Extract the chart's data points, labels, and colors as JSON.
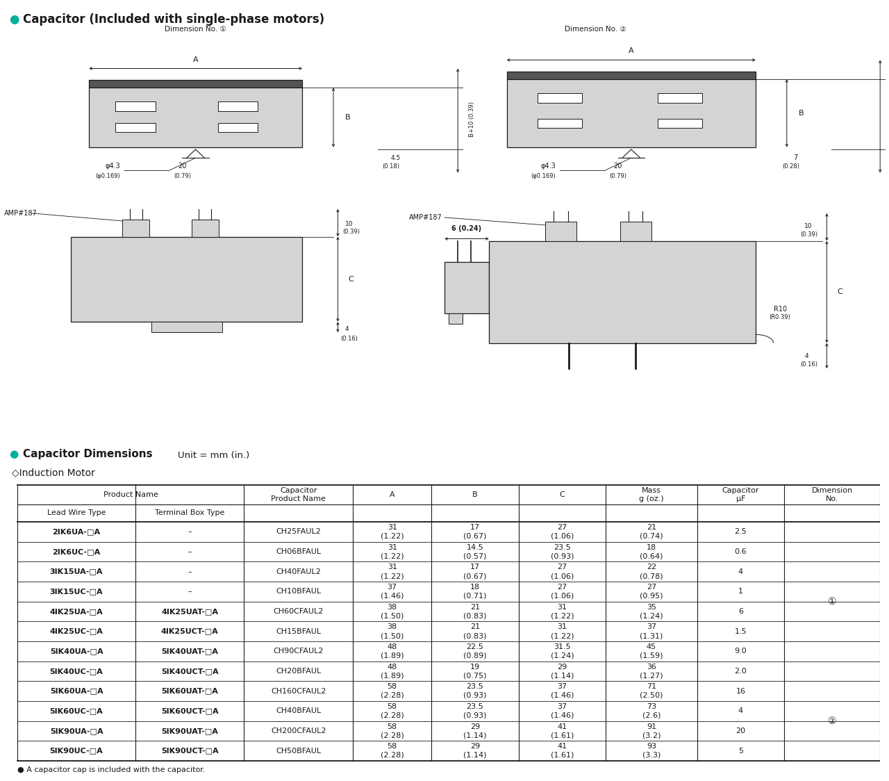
{
  "title": "Capacitor (Included with single-phase motors)",
  "bullet_color": "#00b09a",
  "bg_color": "#ffffff",
  "black": "#1a1a1a",
  "gray_fill": "#d4d4d4",
  "dark_fill": "#555555",
  "dim1_label": "Dimension No. ①",
  "dim2_label": "Dimension No. ②",
  "section2_title": "Capacitor Dimensions",
  "section2_unit": "Unit = mm (in.)",
  "section2_sub": "◇Induction Motor",
  "col_boundaries": [
    1.0,
    14.5,
    27.0,
    39.5,
    48.5,
    58.5,
    68.5,
    79.0,
    89.0,
    100.0
  ],
  "header1": [
    "Product Name",
    "",
    "Capacitor\nProduct Name",
    "A",
    "B",
    "C",
    "Mass\ng (oz.)",
    "Capacitor\nμF",
    "Dimension\nNo."
  ],
  "header2": [
    "Lead Wire Type",
    "Terminal Box Type",
    "",
    "",
    "",
    "",
    "",
    "",
    ""
  ],
  "rows": [
    [
      "2IK6UA-□A",
      "–",
      "CH25FAUL2",
      "31\n(1.22)",
      "17\n(0.67)",
      "27\n(1.06)",
      "21\n(0.74)",
      "2.5",
      ""
    ],
    [
      "2IK6UC-□A",
      "–",
      "CH06BFAUL",
      "31\n(1.22)",
      "14.5\n(0.57)",
      "23.5\n(0.93)",
      "18\n(0.64)",
      "0.6",
      ""
    ],
    [
      "3IK15UA-□A",
      "–",
      "CH40FAUL2",
      "31\n(1.22)",
      "17\n(0.67)",
      "27\n(1.06)",
      "22\n(0.78)",
      "4",
      ""
    ],
    [
      "3IK15UC-□A",
      "–",
      "CH10BFAUL",
      "37\n(1.46)",
      "18\n(0.71)",
      "27\n(1.06)",
      "27\n(0.95)",
      "1",
      ""
    ],
    [
      "4IK25UA-□A",
      "4IK25UAT-□A",
      "CH60CFAUL2",
      "38\n(1.50)",
      "21\n(0.83)",
      "31\n(1.22)",
      "35\n(1.24)",
      "6",
      ""
    ],
    [
      "4IK25UC-□A",
      "4IK25UCT-□A",
      "CH15BFAUL",
      "38\n(1.50)",
      "21\n(0.83)",
      "31\n(1.22)",
      "37\n(1.31)",
      "1.5",
      ""
    ],
    [
      "5IK40UA-□A",
      "5IK40UAT-□A",
      "CH90CFAUL2",
      "48\n(1.89)",
      "22.5\n(0.89)",
      "31.5\n(1.24)",
      "45\n(1.59)",
      "9.0",
      ""
    ],
    [
      "5IK40UC-□A",
      "5IK40UCT-□A",
      "CH20BFAUL",
      "48\n(1.89)",
      "19\n(0.75)",
      "29\n(1.14)",
      "36\n(1.27)",
      "2.0",
      ""
    ],
    [
      "5IK60UA-□A",
      "5IK60UAT-□A",
      "CH160CFAUL2",
      "58\n(2.28)",
      "23.5\n(0.93)",
      "37\n(1.46)",
      "71\n(2.50)",
      "16",
      ""
    ],
    [
      "5IK60UC-□A",
      "5IK60UCT-□A",
      "CH40BFAUL",
      "58\n(2.28)",
      "23.5\n(0.93)",
      "37\n(1.46)",
      "73\n(2.6)",
      "4",
      ""
    ],
    [
      "5IK90UA-□A",
      "5IK90UAT-□A",
      "CH200CFAUL2",
      "58\n(2.28)",
      "29\n(1.14)",
      "41\n(1.61)",
      "91\n(3.2)",
      "20",
      ""
    ],
    [
      "5IK90UC-□A",
      "5IK90UCT-□A",
      "CH50BFAUL",
      "58\n(2.28)",
      "29\n(1.14)",
      "41\n(1.61)",
      "93\n(3.3)",
      "5",
      ""
    ]
  ],
  "dim1_group_rows": [
    0,
    7
  ],
  "dim2_group_rows": [
    8,
    11
  ],
  "footnote": "● A capacitor cap is included with the capacitor."
}
